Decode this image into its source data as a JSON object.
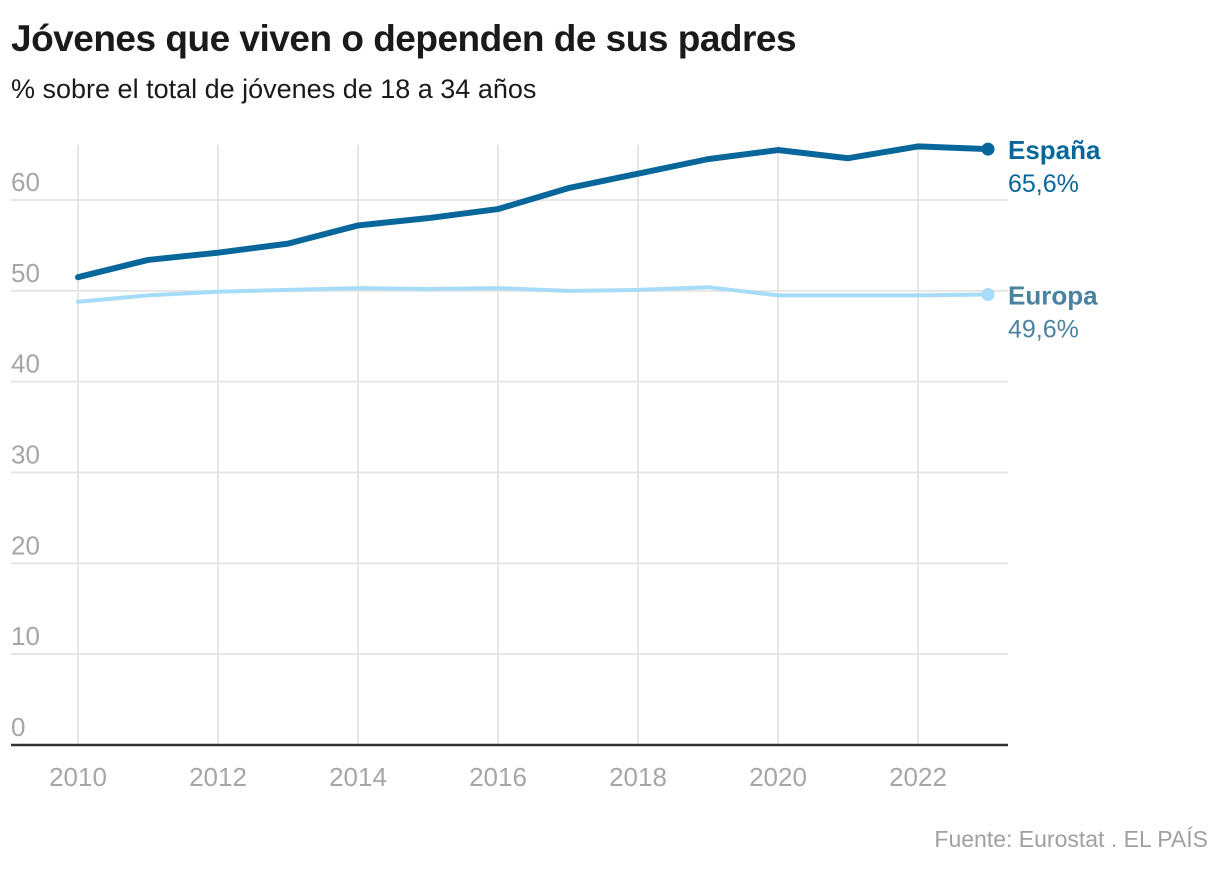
{
  "header": {
    "title": "Jóvenes que viven o dependen de sus padres",
    "subtitle": "% sobre el total de jóvenes de 18 a 34 años"
  },
  "footer": {
    "source": "Fuente: Eurostat . EL PAÍS"
  },
  "chart_data": {
    "type": "line",
    "title": "Jóvenes que viven o dependen de sus padres",
    "subtitle": "% sobre el total de jóvenes de 18 a 34 años",
    "xlabel": "",
    "ylabel": "",
    "x": [
      2010,
      2011,
      2012,
      2013,
      2014,
      2015,
      2016,
      2017,
      2018,
      2019,
      2020,
      2021,
      2022,
      2023
    ],
    "xlim": [
      2010,
      2023
    ],
    "ylim": [
      0,
      66
    ],
    "x_ticks": [
      "2010",
      "2012",
      "2014",
      "2016",
      "2018",
      "2020",
      "2022"
    ],
    "x_tick_values": [
      2010,
      2012,
      2014,
      2016,
      2018,
      2020,
      2022
    ],
    "y_ticks": [
      "0",
      "10",
      "20",
      "30",
      "40",
      "50",
      "60"
    ],
    "y_tick_values": [
      0,
      10,
      20,
      30,
      40,
      50,
      60
    ],
    "grid": true,
    "legend": "direct-labels-right",
    "series": [
      {
        "name": "España",
        "label_value": "65,6%",
        "color": "#08679a",
        "label_color": "#08679a",
        "values": [
          51.5,
          53.4,
          54.2,
          55.2,
          57.2,
          58.0,
          59.0,
          61.3,
          62.9,
          64.5,
          65.5,
          64.6,
          65.9,
          65.6
        ]
      },
      {
        "name": "Europa",
        "label_value": "49,6%",
        "color": "#a6dcf7",
        "label_color": "#4a83a0",
        "values": [
          48.8,
          49.5,
          49.9,
          50.1,
          50.3,
          50.2,
          50.3,
          50.0,
          50.1,
          50.4,
          49.5,
          49.5,
          49.5,
          49.6
        ]
      }
    ]
  }
}
